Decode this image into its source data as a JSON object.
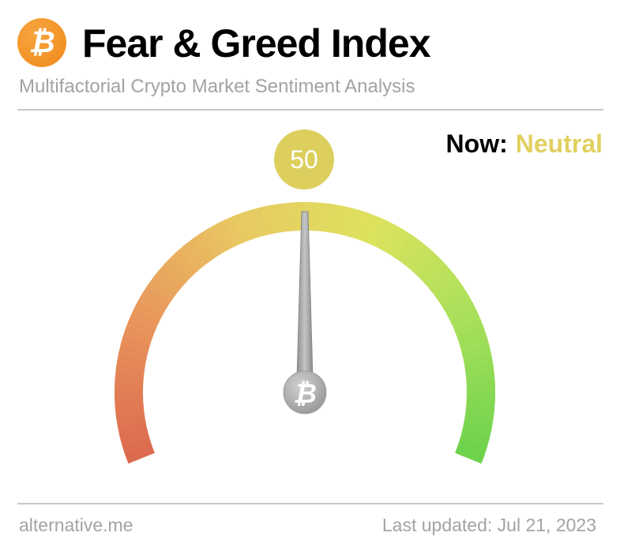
{
  "header": {
    "logo_icon": "bitcoin-icon",
    "logo_color": "#f29328",
    "title": "Fear & Greed Index",
    "subtitle": "Multifactorial Crypto Market Sentiment Analysis"
  },
  "status": {
    "now_label": "Now:",
    "classification": "Neutral",
    "classification_color": "#e1d060"
  },
  "gauge": {
    "value": 50,
    "value_text": "50",
    "min": 0,
    "max": 100,
    "colors": [
      "#dc6a4e",
      "#e8955c",
      "#e9c862",
      "#dde25e",
      "#a8e05a",
      "#6dd24c"
    ],
    "hub_icon": "bitcoin-icon"
  },
  "footer": {
    "source": "alternative.me",
    "last_updated": "Last updated: Jul 21, 2023"
  }
}
